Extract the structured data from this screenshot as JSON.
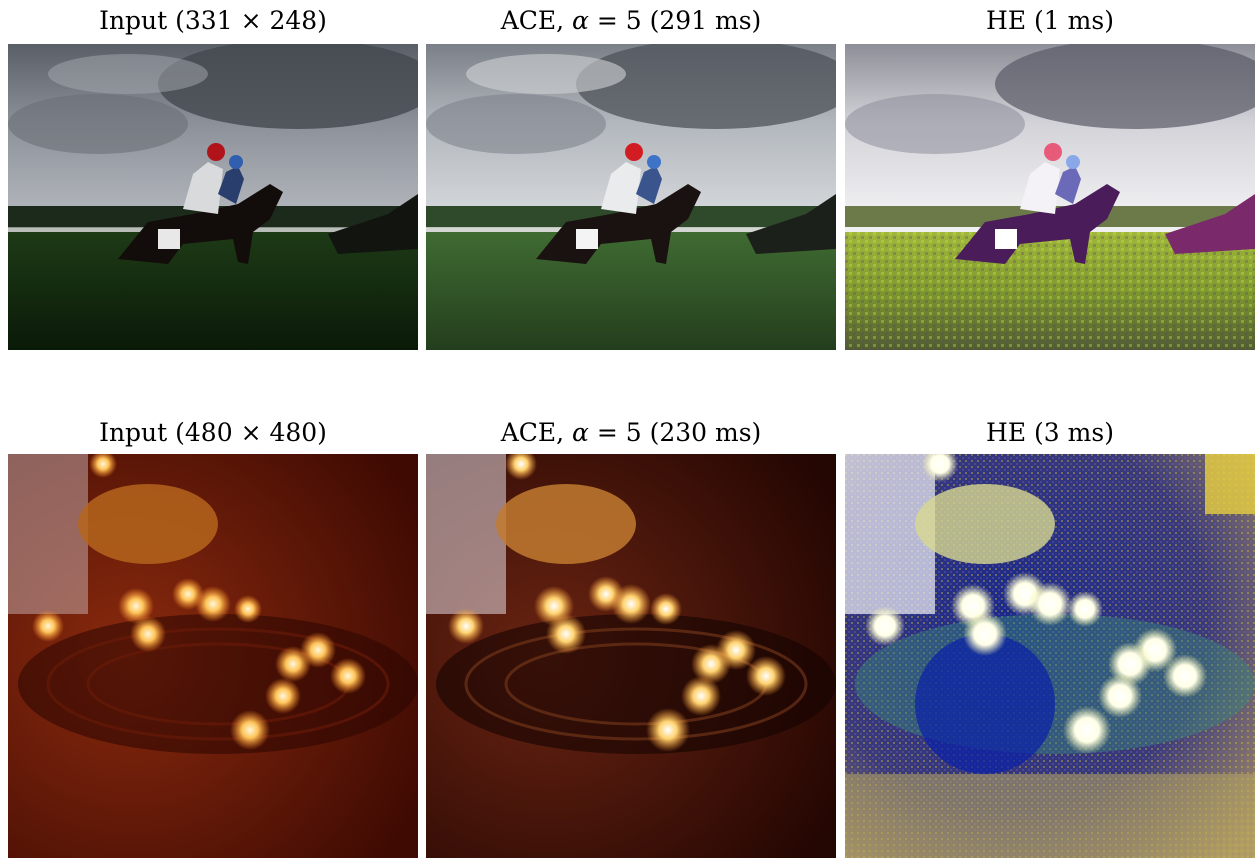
{
  "figure": {
    "rows": [
      {
        "name": "horse-race",
        "panels": [
          {
            "caption_prefix": "Input",
            "caption_rest": " (331 × 248)",
            "alpha": ""
          },
          {
            "caption_prefix": "ACE, ",
            "alpha": "α",
            "caption_rest": " = 5 (291 ms)"
          },
          {
            "caption_prefix": "HE",
            "alpha": "",
            "caption_rest": " (1 ms)"
          }
        ]
      },
      {
        "name": "candles",
        "panels": [
          {
            "caption_prefix": "Input",
            "caption_rest": " (480 × 480)",
            "alpha": ""
          },
          {
            "caption_prefix": "ACE, ",
            "alpha": "α",
            "caption_rest": " = 5 (230 ms)"
          },
          {
            "caption_prefix": "HE",
            "alpha": "",
            "caption_rest": " (3 ms)"
          }
        ]
      }
    ]
  }
}
